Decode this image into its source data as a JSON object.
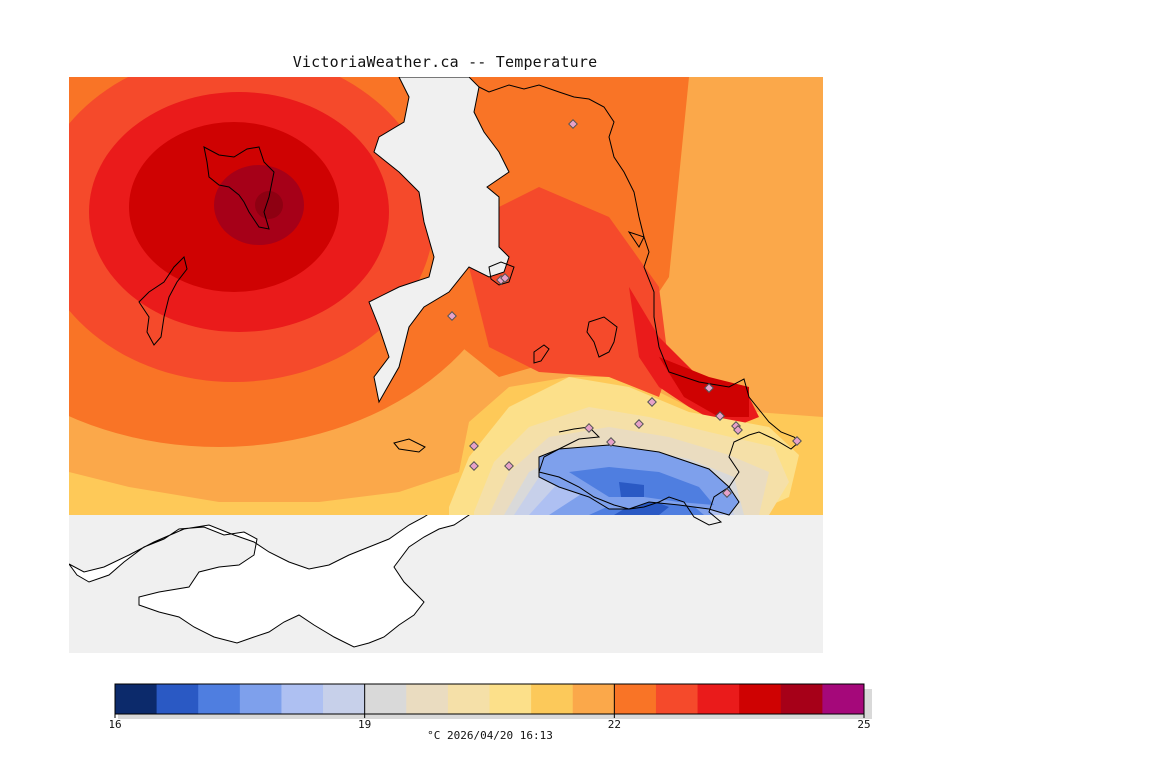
{
  "title": "VictoriaWeather.ca -- Temperature",
  "footer": {
    "unit": "°C",
    "timestamp": "2026/04/20 16:13"
  },
  "colorbar": {
    "min": 16,
    "max": 25,
    "ticks": [
      "16",
      "19",
      "22",
      "25"
    ],
    "colors": [
      "#0c2a6b",
      "#2a59c4",
      "#4f7ee0",
      "#7ea0ec",
      "#aec0f2",
      "#c7d0ea",
      "#d9d9d9",
      "#eadcc0",
      "#f5e0a8",
      "#fce08a",
      "#fcc95a",
      "#fba84a",
      "#f97426",
      "#f54a2b",
      "#ea1b1b",
      "#cf0202",
      "#a60018",
      "#a5087a"
    ]
  },
  "map": {
    "background_color": "#f0f0f0",
    "land_color": "#ffffff",
    "station_marker_color": "#e7a2c9",
    "stations_count": 17
  }
}
